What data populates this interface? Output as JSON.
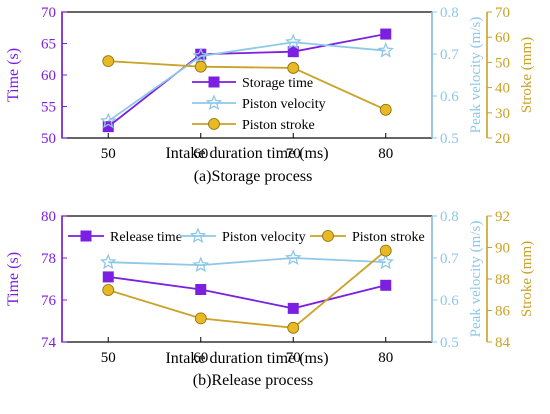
{
  "chart_data": [
    {
      "type": "line",
      "caption": "(a)Storage process",
      "xlabel": "Intake duration time (ms)",
      "x": [
        50,
        60,
        70,
        80
      ],
      "x_ticks": [
        "50",
        "60",
        "70",
        "80"
      ],
      "axes": {
        "left": {
          "label": "Time (s)",
          "ylim": [
            50,
            70
          ],
          "ticks": [
            "50",
            "55",
            "60",
            "65",
            "70"
          ],
          "color": "#7b1fe0"
        },
        "right1": {
          "label": "Peak velocity (m/s)",
          "ylim": [
            0.5,
            0.8
          ],
          "ticks": [
            "0.5",
            "0.6",
            "0.7",
            "0.8"
          ],
          "color": "#8ec8e8"
        },
        "right2": {
          "label": "Stroke (mm)",
          "ylim": [
            20,
            70
          ],
          "ticks": [
            "20",
            "30",
            "40",
            "50",
            "60",
            "70"
          ],
          "color": "#c9a227"
        }
      },
      "series": [
        {
          "name": "Storage time",
          "axis": "left",
          "marker": "square",
          "color": "#7b1fe0",
          "values": [
            51.8,
            63.3,
            63.7,
            66.5
          ]
        },
        {
          "name": "Piston velocity",
          "axis": "right1",
          "marker": "star",
          "color": "#8ec8e8",
          "values": [
            0.54,
            0.695,
            0.728,
            0.708
          ]
        },
        {
          "name": "Piston stroke",
          "axis": "right2",
          "marker": "circle",
          "color": "#c9a227",
          "values": [
            50.5,
            48.3,
            47.8,
            31.2
          ]
        }
      ],
      "legend": "top-left",
      "grid": false
    },
    {
      "type": "line",
      "caption": "(b)Release process",
      "xlabel": "Intake duration time (ms)",
      "x": [
        50,
        60,
        70,
        80
      ],
      "x_ticks": [
        "50",
        "60",
        "70",
        "80"
      ],
      "axes": {
        "left": {
          "label": "Time (s)",
          "ylim": [
            74,
            80
          ],
          "ticks": [
            "74",
            "76",
            "78",
            "80"
          ],
          "color": "#7b1fe0"
        },
        "right1": {
          "label": "Peak velocity (m/s)",
          "ylim": [
            0.5,
            0.8
          ],
          "ticks": [
            "0.5",
            "0.6",
            "0.7",
            "0.8"
          ],
          "color": "#8ec8e8"
        },
        "right2": {
          "label": "Stroke (mm)",
          "ylim": [
            84,
            92
          ],
          "ticks": [
            "84",
            "86",
            "88",
            "90",
            "92"
          ],
          "color": "#c9a227"
        }
      },
      "series": [
        {
          "name": "Release time",
          "axis": "left",
          "marker": "square",
          "color": "#7b1fe0",
          "values": [
            77.1,
            76.5,
            75.6,
            76.7
          ]
        },
        {
          "name": "Piston velocity",
          "axis": "right1",
          "marker": "star",
          "color": "#8ec8e8",
          "values": [
            0.69,
            0.683,
            0.7,
            0.69
          ]
        },
        {
          "name": "Piston stroke",
          "axis": "right2",
          "marker": "circle",
          "color": "#c9a227",
          "values": [
            87.3,
            85.5,
            84.9,
            89.8
          ]
        }
      ],
      "legend": "top",
      "grid": false
    }
  ]
}
